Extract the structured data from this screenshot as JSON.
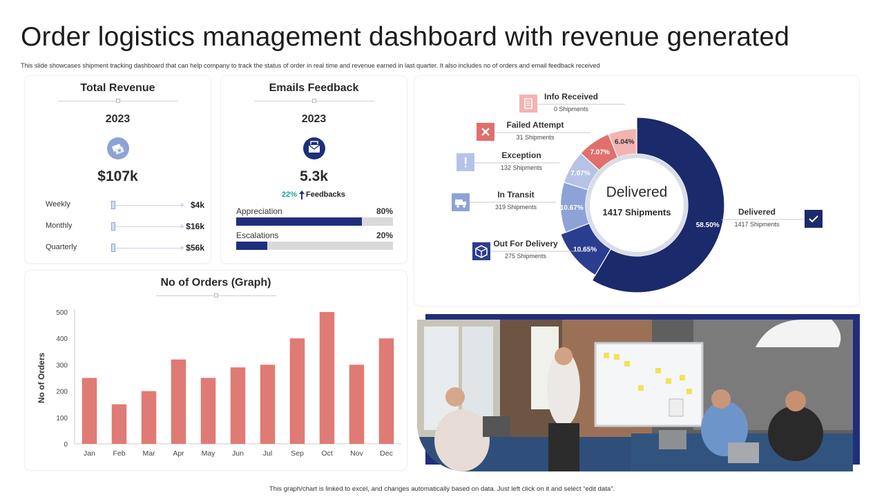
{
  "page": {
    "title": "Order logistics management dashboard with revenue generated",
    "subtitle": "This slide showcases shipment tracking dashboard that can help company to track the status of order in real time and revenue earned in last quarter. It also includes no of orders and email feedback received",
    "footer": "This graph/chart is linked to excel, and changes automatically based on data. Just left click on it and select “edit data”."
  },
  "revenue": {
    "title": "Total Revenue",
    "year": "2023",
    "total": "$107k",
    "icon": "money-icon",
    "rows": [
      {
        "label": "Weekly",
        "value": "$4k"
      },
      {
        "label": "Monthly",
        "value": "$16k"
      },
      {
        "label": "Quarterly",
        "value": "$56k"
      }
    ]
  },
  "feedback": {
    "title": "Emails Feedback",
    "year": "2023",
    "total": "5.3k",
    "icon": "email-icon",
    "change_pct": "22%",
    "change_label": "Feedbacks",
    "accent_color": "#1aa79c",
    "bars": [
      {
        "label": "Appreciation",
        "value_label": "80%",
        "value": 80
      },
      {
        "label": "Escalations",
        "value_label": "20%",
        "value": 20
      }
    ]
  },
  "chart_data": [
    {
      "type": "bar",
      "title": "No of Orders (Graph)",
      "ylabel": "No of Orders",
      "xlabel": "",
      "categories": [
        "Jan",
        "Feb",
        "Mar",
        "Apr",
        "May",
        "Jun",
        "Jul",
        "Sep",
        "Oct",
        "Nov",
        "Dec"
      ],
      "values": [
        250,
        150,
        200,
        320,
        250,
        290,
        300,
        400,
        500,
        300,
        400
      ],
      "ylim": [
        0,
        500
      ],
      "yticks": [
        0,
        100,
        200,
        300,
        400,
        500
      ],
      "color": "#e07a74",
      "grid": false
    },
    {
      "type": "pie",
      "center_title": "Delivered",
      "center_subtitle": "1417 Shipments",
      "slices": [
        {
          "name": "Delivered",
          "value": 58.5,
          "label": "58.50%",
          "color": "#1b2a6b",
          "label_color": "#ffffff",
          "shipments": "1417 Shipments",
          "icon": "check-icon"
        },
        {
          "name": "Out For Delivery",
          "value": 10.65,
          "label": "10.65%",
          "color": "#2b3d8f",
          "label_color": "#ffffff",
          "shipments": "275 Shipments",
          "icon": "box-icon"
        },
        {
          "name": "In Transit",
          "value": 10.67,
          "label": "10.67%",
          "color": "#8da2d6",
          "label_color": "#ffffff",
          "shipments": "319 Shipments",
          "icon": "truck-icon"
        },
        {
          "name": "Exception",
          "value": 7.07,
          "label": "7.07%",
          "color": "#b6c3e6",
          "label_color": "#ffffff",
          "shipments": "132 Shipments",
          "icon": "exclamation-icon"
        },
        {
          "name": "Failed Attempt",
          "value": 7.07,
          "label": "7.07%",
          "color": "#e16f6c",
          "label_color": "#ffffff",
          "shipments": "31 Shipments",
          "icon": "close-icon"
        },
        {
          "name": "Info Received",
          "value": 6.04,
          "label": "6.04%",
          "color": "#f2b4b2",
          "label_color": "#333333",
          "shipments": "0 Shipments",
          "icon": "document-icon"
        }
      ]
    }
  ],
  "photo": {
    "icon": "team-meeting-photo"
  }
}
